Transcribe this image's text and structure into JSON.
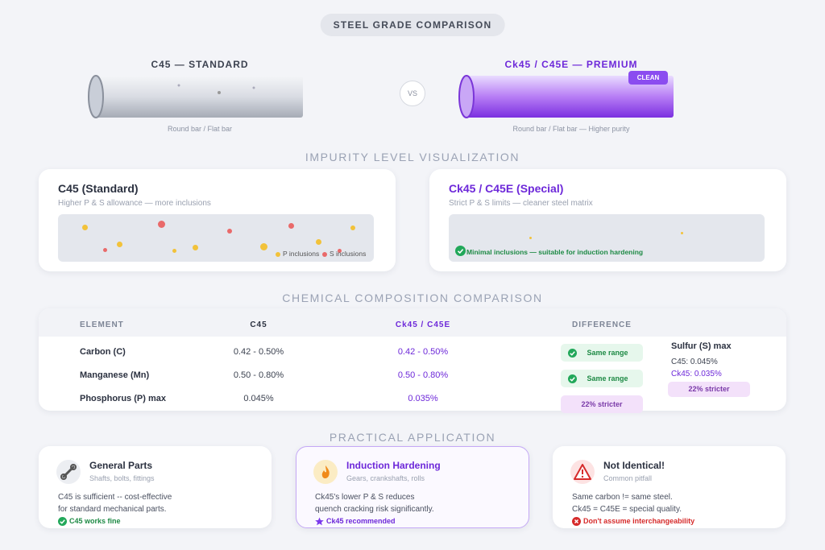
{
  "header": {
    "title": "STEEL GRADE COMPARISON"
  },
  "bars": {
    "left": {
      "title": "C45 — STANDARD",
      "caption": "Round bar / Flat bar"
    },
    "vs": "VS",
    "right": {
      "title": "Ck45 / C45E — PREMIUM",
      "badge": "CLEAN",
      "caption": "Round bar / Flat bar — Higher purity"
    }
  },
  "impurity": {
    "heading": "IMPURITY LEVEL VISUALIZATION",
    "cards": [
      {
        "title": "C45 (Standard)",
        "subtitle": "Higher P & S allowance — more inclusions",
        "legend": [
          "P inclusions",
          "S inclusions"
        ]
      },
      {
        "title": "Ck45 / C45E (Special)",
        "subtitle": "Strict P & S limits — cleaner steel matrix",
        "note": "Minimal inclusions — suitable for induction hardening"
      }
    ]
  },
  "composition": {
    "heading": "CHEMICAL COMPOSITION COMPARISON",
    "columns": [
      "ELEMENT",
      "C45",
      "Ck45 / C45E",
      "DIFFERENCE"
    ],
    "rows": [
      [
        "Carbon (C)",
        "0.42 - 0.50%",
        "0.42 - 0.50%",
        "Same range"
      ],
      [
        "Manganese (Mn)",
        "0.50 - 0.80%",
        "0.50 - 0.80%",
        "Same range"
      ],
      [
        "Phosphorus (P) max",
        "0.045%",
        "0.035%",
        "22% stricter"
      ]
    ],
    "sulfur": {
      "title": "Sulfur (S) max",
      "c45": "C45: 0.045%",
      "ck45": "Ck45: 0.035%",
      "difference": "22% stricter"
    }
  },
  "application": {
    "heading": "PRACTICAL APPLICATION",
    "cards": [
      {
        "title": "General Parts",
        "subtitle": "Shafts, bolts, fittings",
        "text": [
          "C45 is sufficient -- cost-effective",
          "for standard mechanical parts."
        ],
        "footer": "C45 works fine"
      },
      {
        "title": "Induction Hardening",
        "subtitle": "Gears, crankshafts, rolls",
        "text": [
          "Ck45's lower P & S reduces",
          "quench cracking risk significantly."
        ],
        "footer": "Ck45 recommended"
      },
      {
        "title": "Not Identical!",
        "subtitle": "Common pitfall",
        "text": [
          "Same carbon != same steel.",
          "Ck45 = C45E = special quality."
        ],
        "footer": "Don't assume interchangeability"
      }
    ]
  }
}
